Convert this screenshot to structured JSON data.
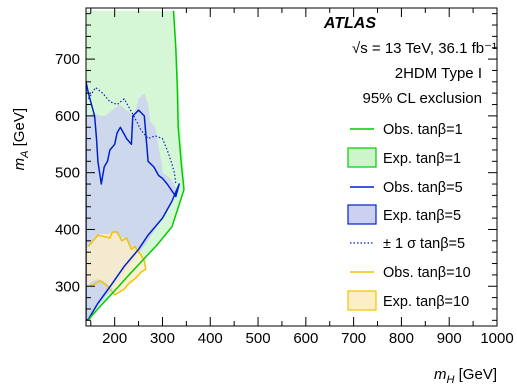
{
  "chart_data": {
    "type": "area",
    "xlabel": "m_H [GeV]",
    "ylabel": "m_A [GeV]",
    "xlim": [
      140,
      1000
    ],
    "ylim": [
      230,
      790
    ],
    "x_ticks": [
      200,
      300,
      400,
      500,
      600,
      700,
      800,
      900,
      1000
    ],
    "y_ticks": [
      300,
      400,
      500,
      600,
      700
    ],
    "legend_position": "right",
    "annotation": {
      "experiment": "ATLAS",
      "energy_lumi": "√s = 13 TeV, 36.1 fb⁻¹",
      "model": "2HDM Type I",
      "confidence": "95% CL exclusion"
    },
    "series": [
      {
        "name": "Obs. tanβ=1",
        "style": "line",
        "color": "#00cc00",
        "points": [
          [
            145,
            240
          ],
          [
            150,
            246
          ],
          [
            170,
            265
          ],
          [
            200,
            292
          ],
          [
            230,
            320
          ],
          [
            260,
            347
          ],
          [
            290,
            374
          ],
          [
            320,
            405
          ],
          [
            345,
            470
          ],
          [
            340,
            510
          ],
          [
            333,
            580
          ],
          [
            331,
            650
          ],
          [
            328,
            720
          ],
          [
            323,
            785
          ]
        ]
      },
      {
        "name": "Exp. tanβ=1",
        "style": "band",
        "color": "#00cc00",
        "fill": "#ccf5cc",
        "points": [
          [
            140,
            240
          ],
          [
            160,
            256
          ],
          [
            190,
            283
          ],
          [
            220,
            311
          ],
          [
            250,
            338
          ],
          [
            280,
            365
          ],
          [
            310,
            393
          ],
          [
            335,
            438
          ],
          [
            346,
            478
          ],
          [
            344,
            520
          ],
          [
            338,
            580
          ],
          [
            334,
            650
          ],
          [
            330,
            720
          ],
          [
            325,
            785
          ],
          [
            140,
            785
          ]
        ]
      },
      {
        "name": "Obs. tanβ=5",
        "style": "line",
        "color": "#0022cc",
        "points": [
          [
            145,
            640
          ],
          [
            158,
            600
          ],
          [
            162,
            560
          ],
          [
            165,
            520
          ],
          [
            172,
            480
          ],
          [
            178,
            510
          ],
          [
            185,
            520
          ],
          [
            190,
            540
          ],
          [
            200,
            550
          ],
          [
            205,
            570
          ],
          [
            212,
            580
          ],
          [
            225,
            560
          ],
          [
            235,
            550
          ],
          [
            238,
            600
          ],
          [
            250,
            610
          ],
          [
            262,
            600
          ],
          [
            270,
            520
          ],
          [
            282,
            510
          ],
          [
            292,
            495
          ],
          [
            300,
            490
          ],
          [
            310,
            480
          ],
          [
            318,
            470
          ],
          [
            328,
            458
          ],
          [
            335,
            480
          ],
          [
            320,
            450
          ],
          [
            300,
            420
          ],
          [
            270,
            390
          ],
          [
            250,
            365
          ],
          [
            220,
            335
          ],
          [
            195,
            305
          ],
          [
            165,
            270
          ],
          [
            145,
            242
          ],
          [
            140,
            240
          ],
          [
            140,
            660
          ],
          [
            145,
            640
          ]
        ]
      },
      {
        "name": "Exp. tanβ=5",
        "style": "band",
        "color": "#0022cc",
        "fill": "#ccd0f2",
        "points": [
          [
            140,
            240
          ],
          [
            165,
            265
          ],
          [
            200,
            300
          ],
          [
            240,
            345
          ],
          [
            270,
            380
          ],
          [
            300,
            420
          ],
          [
            320,
            455
          ],
          [
            330,
            470
          ],
          [
            322,
            485
          ],
          [
            310,
            495
          ],
          [
            300,
            500
          ],
          [
            298,
            520
          ],
          [
            293,
            540
          ],
          [
            285,
            580
          ],
          [
            275,
            590
          ],
          [
            270,
            620
          ],
          [
            262,
            640
          ],
          [
            250,
            630
          ],
          [
            240,
            600
          ],
          [
            225,
            610
          ],
          [
            210,
            620
          ],
          [
            195,
            610
          ],
          [
            180,
            600
          ],
          [
            170,
            600
          ],
          [
            155,
            605
          ],
          [
            145,
            600
          ],
          [
            140,
            595
          ]
        ]
      },
      {
        "name": "± 1 σ tanβ=5",
        "style": "dotted",
        "color": "#0022cc",
        "points": [
          [
            145,
            630
          ],
          [
            160,
            650
          ],
          [
            175,
            640
          ],
          [
            190,
            625
          ],
          [
            205,
            620
          ],
          [
            220,
            630
          ],
          [
            240,
            600
          ],
          [
            255,
            575
          ],
          [
            270,
            560
          ],
          [
            285,
            565
          ],
          [
            300,
            560
          ],
          [
            310,
            540
          ],
          [
            318,
            520
          ],
          [
            325,
            500
          ],
          [
            328,
            480
          ]
        ]
      },
      {
        "name": "Obs. tanβ=10",
        "style": "line",
        "color": "#f2c200",
        "points": [
          [
            145,
            370
          ],
          [
            155,
            380
          ],
          [
            165,
            390
          ],
          [
            175,
            388
          ],
          [
            190,
            385
          ],
          [
            195,
            395
          ],
          [
            205,
            396
          ],
          [
            215,
            380
          ],
          [
            225,
            385
          ],
          [
            235,
            365
          ],
          [
            242,
            370
          ],
          [
            255,
            355
          ],
          [
            262,
            345
          ],
          [
            265,
            330
          ],
          [
            255,
            325
          ],
          [
            245,
            315
          ],
          [
            230,
            305
          ],
          [
            220,
            295
          ],
          [
            200,
            285
          ],
          [
            185,
            300
          ],
          [
            170,
            310
          ],
          [
            160,
            305
          ],
          [
            148,
            300
          ]
        ]
      },
      {
        "name": "Exp. tanβ=10",
        "style": "band",
        "color": "#f2c200",
        "fill": "#fcefc8",
        "points": [
          [
            140,
            300
          ],
          [
            155,
            310
          ],
          [
            165,
            312
          ],
          [
            180,
            308
          ],
          [
            195,
            296
          ],
          [
            210,
            290
          ],
          [
            230,
            305
          ],
          [
            250,
            320
          ],
          [
            262,
            335
          ],
          [
            265,
            345
          ],
          [
            258,
            355
          ],
          [
            245,
            365
          ],
          [
            235,
            370
          ],
          [
            225,
            385
          ],
          [
            212,
            385
          ],
          [
            200,
            395
          ],
          [
            185,
            392
          ],
          [
            170,
            392
          ],
          [
            158,
            385
          ],
          [
            148,
            375
          ],
          [
            140,
            365
          ]
        ]
      }
    ]
  }
}
